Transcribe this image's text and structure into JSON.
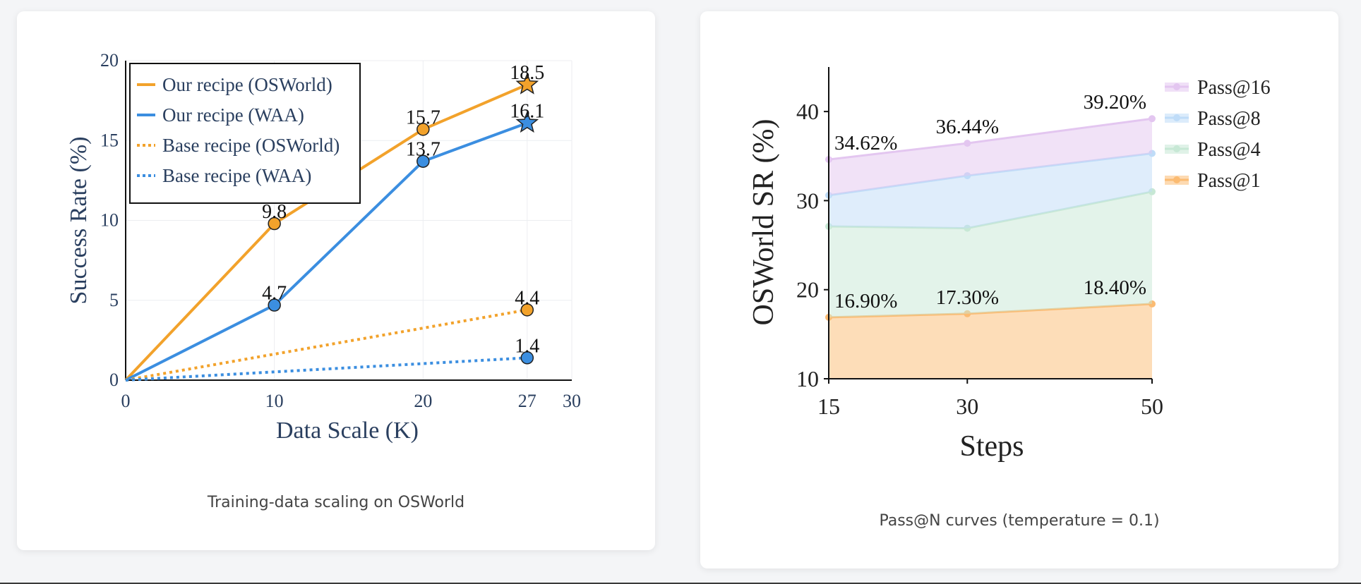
{
  "chart_data": [
    {
      "type": "line",
      "title": "",
      "xlabel": "Data Scale (K)",
      "ylabel": "Success Rate (%)",
      "xlim": [
        0,
        30
      ],
      "ylim": [
        0,
        20
      ],
      "xticks": [
        "0",
        "10",
        "20",
        "27",
        "30"
      ],
      "xtick_values": [
        0,
        10,
        20,
        27,
        30
      ],
      "yticks": [
        "0",
        "5",
        "10",
        "15",
        "20"
      ],
      "ytick_values": [
        0,
        5,
        10,
        15,
        20
      ],
      "legend_position": "top-left",
      "series": [
        {
          "name": "Our recipe (OSWorld)",
          "color": "#f2a22b",
          "style": "solid",
          "x": [
            0,
            10,
            20,
            27
          ],
          "values": [
            0,
            9.8,
            15.7,
            18.5
          ],
          "labels": [
            "",
            "9.8",
            "15.7",
            "18.5"
          ],
          "last_marker": "star"
        },
        {
          "name": "Our recipe (WAA)",
          "color": "#3b8ee0",
          "style": "solid",
          "x": [
            0,
            10,
            20,
            27
          ],
          "values": [
            0,
            4.7,
            13.7,
            16.1
          ],
          "labels": [
            "",
            "4.7",
            "13.7",
            "16.1"
          ],
          "last_marker": "star"
        },
        {
          "name": "Base recipe (OSWorld)",
          "color": "#f2a22b",
          "style": "dotted",
          "x": [
            0,
            27
          ],
          "values": [
            0,
            4.4
          ],
          "labels": [
            "",
            "4.4"
          ],
          "last_marker": "circle"
        },
        {
          "name": "Base recipe (WAA)",
          "color": "#3b8ee0",
          "style": "dotted",
          "x": [
            0,
            27
          ],
          "values": [
            0,
            1.4
          ],
          "labels": [
            "",
            "1.4"
          ],
          "last_marker": "circle"
        }
      ],
      "caption": "Training-data scaling on OSWorld"
    },
    {
      "type": "area",
      "title": "",
      "xlabel": "Steps",
      "ylabel": "OSWorld SR (%)",
      "categories": [
        "15",
        "30",
        "50"
      ],
      "x_values": [
        15,
        30,
        50
      ],
      "xlim": [
        15,
        50
      ],
      "ylim": [
        10,
        45
      ],
      "yticks": [
        "10",
        "20",
        "30",
        "40"
      ],
      "ytick_values": [
        10,
        20,
        30,
        40
      ],
      "legend_position": "top-right",
      "series": [
        {
          "name": "Pass@16",
          "color": "#e3c6f0",
          "values": [
            34.62,
            36.44,
            39.2
          ],
          "labels": [
            "34.62%",
            "36.44%",
            "39.20%"
          ]
        },
        {
          "name": "Pass@8",
          "color": "#bfdcf8",
          "values": [
            30.6,
            32.8,
            35.3
          ],
          "labels": []
        },
        {
          "name": "Pass@4",
          "color": "#c7e8d5",
          "values": [
            27.1,
            26.9,
            31.0
          ],
          "labels": []
        },
        {
          "name": "Pass@1",
          "color": "#fbbb72",
          "values": [
            16.9,
            17.3,
            18.4
          ],
          "labels": [
            "16.90%",
            "17.30%",
            "18.40%"
          ]
        }
      ],
      "caption": "Pass@N curves (temperature = 0.1)"
    }
  ]
}
